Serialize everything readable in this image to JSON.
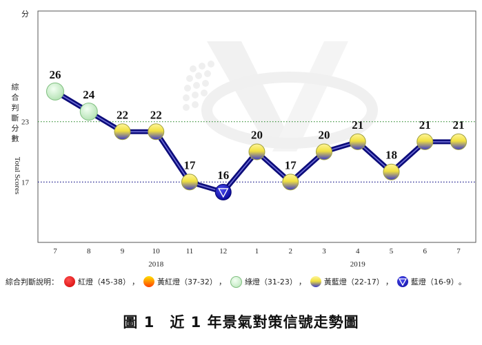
{
  "chart_data": {
    "type": "line",
    "title": "",
    "ylabel_cn": "綜合判斷分數",
    "ylabel_en": "Total Scores",
    "y_unit": "分",
    "ylim": [
      11,
      34
    ],
    "x": [
      "7",
      "8",
      "9",
      "10",
      "11",
      "12",
      "1",
      "2",
      "3",
      "4",
      "5",
      "6",
      "7"
    ],
    "years": [
      {
        "label": "2018",
        "center_index": 3
      },
      {
        "label": "2019",
        "center_index": 9
      }
    ],
    "values": [
      26,
      24,
      22,
      22,
      17,
      16,
      20,
      17,
      20,
      21,
      18,
      21,
      21
    ],
    "signals": [
      "green",
      "green",
      "yellow-blue",
      "yellow-blue",
      "yellow-blue",
      "blue",
      "yellow-blue",
      "yellow-blue",
      "yellow-blue",
      "yellow-blue",
      "yellow-blue",
      "yellow-blue",
      "yellow-blue"
    ],
    "reference_lines": [
      {
        "value": 23,
        "label": "23",
        "color": "#2e8b2e"
      },
      {
        "value": 17,
        "label": "17",
        "color": "#1a1a8c"
      }
    ],
    "line_color": "#0c0c7a",
    "grid": false,
    "legend_position": "bottom"
  },
  "legend": {
    "title": "綜合判斷說明：",
    "items": [
      {
        "key": "red",
        "label": "紅燈（45-38）"
      },
      {
        "key": "yellow-red",
        "label": "黃紅燈（37-32）"
      },
      {
        "key": "green",
        "label": "綠燈（31-23）"
      },
      {
        "key": "yellow-blue",
        "label": "黃藍燈（22-17）"
      },
      {
        "key": "blue",
        "label": "藍燈（16-9）"
      }
    ],
    "separator": "，",
    "end": "。"
  },
  "caption": {
    "figure": "圖 1",
    "title": "近 1 年景氣對策信號走勢圖"
  },
  "colors": {
    "red": "#e00000",
    "yellow-red": "#ff8c00",
    "green": "#cfeecf",
    "yellow-blue": "#f0e040",
    "blue": "#1010b0"
  }
}
